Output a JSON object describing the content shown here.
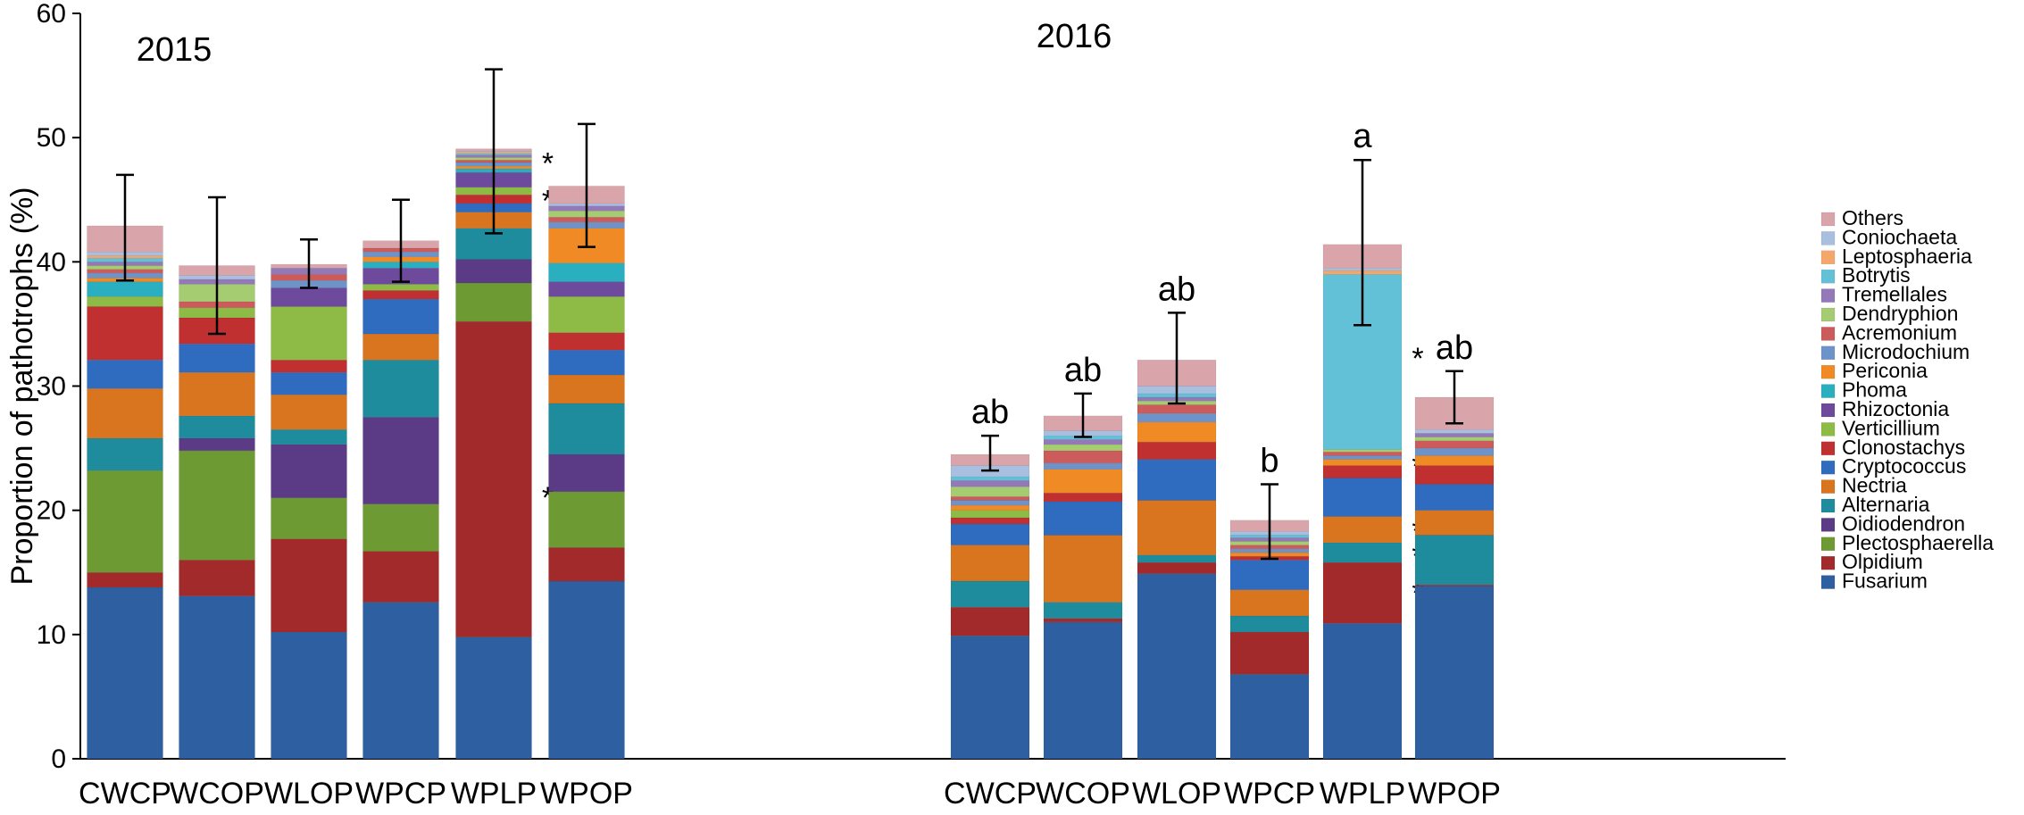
{
  "chart_data": {
    "type": "bar",
    "stacked": true,
    "ylabel": "Proportion of pathotrophs (%)",
    "ylim": [
      0,
      60
    ],
    "yticks": [
      0,
      10,
      20,
      30,
      40,
      50,
      60
    ],
    "categories": [
      "CWCP",
      "WCOP",
      "WLOP",
      "WPCP",
      "WPLP",
      "WPOP"
    ],
    "legend": {
      "position": "right",
      "order_top_to_bottom": [
        "Others",
        "Coniochaeta",
        "Leptosphaeria",
        "Botrytis",
        "Tremellales",
        "Dendryphion",
        "Acremonium",
        "Microdochium",
        "Periconia",
        "Phoma",
        "Rhizoctonia",
        "Verticillium",
        "Clonostachys",
        "Cryptococcus",
        "Nectria",
        "Alternaria",
        "Oidiodendron",
        "Plectosphaerella",
        "Olpidium",
        "Fusarium"
      ]
    },
    "series_colors": {
      "Fusarium": "#2E5FA1",
      "Olpidium": "#A32A2A",
      "Plectosphaerella": "#6D9A32",
      "Oidiodendron": "#5B3A86",
      "Alternaria": "#1F8C9E",
      "Nectria": "#D9741F",
      "Cryptococcus": "#2F6CC0",
      "Clonostachys": "#C03030",
      "Verticillium": "#8DBB45",
      "Rhizoctonia": "#6E4A9C",
      "Phoma": "#2AAFC0",
      "Periconia": "#F08A24",
      "Microdochium": "#6E93C8",
      "Acremonium": "#CC5B5B",
      "Dendryphion": "#A6CC72",
      "Tremellales": "#9379B8",
      "Botrytis": "#62C1D6",
      "Leptosphaeria": "#F5A66A",
      "Coniochaeta": "#A9BFE0",
      "Others": "#D9A5AA"
    },
    "panels": [
      {
        "year": "2015",
        "bars": [
          {
            "category": "CWCP",
            "segments": {
              "Fusarium": 13.8,
              "Olpidium": 1.2,
              "Plectosphaerella": 8.2,
              "Alternaria": 2.6,
              "Nectria": 4.0,
              "Cryptococcus": 2.3,
              "Clonostachys": 4.3,
              "Verticillium": 0.8,
              "Phoma": 1.2,
              "Periconia": 0.3,
              "Microdochium": 0.4,
              "Acremonium": 0.3,
              "Dendryphion": 0.3,
              "Tremellales": 0.3,
              "Botrytis": 0.3,
              "Leptosphaeria": 0.2,
              "Coniochaeta": 0.3,
              "Others": 2.1
            },
            "error": [
              38.5,
              47.0
            ],
            "stars": [],
            "letter": ""
          },
          {
            "category": "WCOP",
            "segments": {
              "Fusarium": 13.1,
              "Olpidium": 2.9,
              "Plectosphaerella": 8.8,
              "Oidiodendron": 1.0,
              "Alternaria": 1.8,
              "Nectria": 3.5,
              "Cryptococcus": 2.3,
              "Clonostachys": 2.1,
              "Verticillium": 0.8,
              "Acremonium": 0.5,
              "Dendryphion": 1.4,
              "Tremellales": 0.4,
              "Coniochaeta": 0.3,
              "Others": 0.8
            },
            "error": [
              34.2,
              45.2
            ],
            "stars": [],
            "letter": ""
          },
          {
            "category": "WLOP",
            "segments": {
              "Fusarium": 10.2,
              "Olpidium": 7.5,
              "Plectosphaerella": 3.3,
              "Oidiodendron": 4.3,
              "Alternaria": 1.2,
              "Nectria": 2.8,
              "Cryptococcus": 1.8,
              "Clonostachys": 1.0,
              "Verticillium": 4.3,
              "Rhizoctonia": 1.5,
              "Microdochium": 0.6,
              "Acremonium": 0.5,
              "Tremellales": 0.5,
              "Others": 0.3
            },
            "error": [
              37.9,
              41.8
            ],
            "stars": [],
            "letter": ""
          },
          {
            "category": "WPCP",
            "segments": {
              "Fusarium": 12.6,
              "Olpidium": 4.1,
              "Plectosphaerella": 3.8,
              "Oidiodendron": 7.0,
              "Alternaria": 4.6,
              "Nectria": 2.1,
              "Cryptococcus": 2.8,
              "Clonostachys": 0.7,
              "Verticillium": 0.5,
              "Rhizoctonia": 1.3,
              "Phoma": 0.5,
              "Periconia": 0.4,
              "Microdochium": 0.4,
              "Acremonium": 0.3,
              "Others": 0.6
            },
            "error": [
              38.4,
              45.0
            ],
            "stars": [],
            "letter": ""
          },
          {
            "category": "WPLP",
            "segments": {
              "Fusarium": 9.8,
              "Olpidium": 25.4,
              "Plectosphaerella": 3.1,
              "Oidiodendron": 1.9,
              "Alternaria": 2.5,
              "Nectria": 1.3,
              "Cryptococcus": 0.7,
              "Clonostachys": 0.7,
              "Verticillium": 0.6,
              "Rhizoctonia": 1.2,
              "Phoma": 0.3,
              "Periconia": 0.2,
              "Microdochium": 0.3,
              "Acremonium": 0.2,
              "Dendryphion": 0.2,
              "Tremellales": 0.2,
              "Botrytis": 0.1,
              "Leptosphaeria": 0.1,
              "Coniochaeta": 0.1,
              "Others": 0.2
            },
            "error": [
              42.3,
              55.5
            ],
            "stars": [
              21.2,
              45.1,
              48.1
            ],
            "letter": ""
          },
          {
            "category": "WPOP",
            "segments": {
              "Fusarium": 14.3,
              "Olpidium": 2.7,
              "Plectosphaerella": 4.5,
              "Oidiodendron": 3.0,
              "Alternaria": 4.1,
              "Nectria": 2.3,
              "Cryptococcus": 2.0,
              "Clonostachys": 1.4,
              "Verticillium": 2.9,
              "Rhizoctonia": 1.2,
              "Phoma": 1.5,
              "Periconia": 2.8,
              "Microdochium": 0.5,
              "Acremonium": 0.4,
              "Dendryphion": 0.5,
              "Tremellales": 0.4,
              "Coniochaeta": 0.2,
              "Others": 1.4
            },
            "error": [
              41.2,
              51.1
            ],
            "stars": [],
            "letter": ""
          }
        ]
      },
      {
        "year": "2016",
        "bars": [
          {
            "category": "CWCP",
            "segments": {
              "Fusarium": 9.9,
              "Olpidium": 2.3,
              "Alternaria": 2.1,
              "Nectria": 2.9,
              "Cryptococcus": 1.7,
              "Clonostachys": 0.5,
              "Verticillium": 0.6,
              "Periconia": 0.4,
              "Microdochium": 0.4,
              "Acremonium": 0.3,
              "Dendryphion": 0.8,
              "Tremellales": 0.5,
              "Botrytis": 0.3,
              "Coniochaeta": 0.9,
              "Others": 0.9
            },
            "error": [
              23.2,
              26.0
            ],
            "stars": [],
            "letter": "ab"
          },
          {
            "category": "WCOP",
            "segments": {
              "Fusarium": 11.0,
              "Olpidium": 0.3,
              "Alternaria": 1.3,
              "Nectria": 5.4,
              "Cryptococcus": 2.7,
              "Clonostachys": 0.7,
              "Periconia": 1.9,
              "Microdochium": 0.5,
              "Acremonium": 1.0,
              "Dendryphion": 0.5,
              "Tremellales": 0.4,
              "Botrytis": 0.3,
              "Coniochaeta": 0.4,
              "Others": 1.2
            },
            "error": [
              25.9,
              29.4
            ],
            "stars": [],
            "letter": "ab"
          },
          {
            "category": "WLOP",
            "segments": {
              "Fusarium": 14.9,
              "Olpidium": 0.9,
              "Alternaria": 0.6,
              "Nectria": 4.4,
              "Cryptococcus": 3.3,
              "Clonostachys": 1.4,
              "Periconia": 1.6,
              "Microdochium": 0.7,
              "Acremonium": 0.7,
              "Dendryphion": 0.3,
              "Tremellales": 0.3,
              "Botrytis": 0.3,
              "Coniochaeta": 0.6,
              "Others": 2.1
            },
            "error": [
              28.6,
              35.9
            ],
            "stars": [],
            "letter": "ab"
          },
          {
            "category": "WPCP",
            "segments": {
              "Fusarium": 6.8,
              "Olpidium": 3.4,
              "Alternaria": 1.3,
              "Nectria": 2.1,
              "Cryptococcus": 2.4,
              "Clonostachys": 0.3,
              "Periconia": 0.3,
              "Microdochium": 0.3,
              "Acremonium": 0.3,
              "Dendryphion": 0.3,
              "Tremellales": 0.3,
              "Botrytis": 0.2,
              "Coniochaeta": 0.3,
              "Others": 0.9
            },
            "error": [
              16.1,
              22.1
            ],
            "stars": [],
            "letter": "b"
          },
          {
            "category": "WPLP",
            "segments": {
              "Fusarium": 10.9,
              "Olpidium": 4.9,
              "Alternaria": 1.6,
              "Nectria": 2.1,
              "Cryptococcus": 3.1,
              "Clonostachys": 1.0,
              "Periconia": 0.5,
              "Microdochium": 0.3,
              "Acremonium": 0.3,
              "Dendryphion": 0.2,
              "Botrytis": 14.1,
              "Leptosphaeria": 0.3,
              "Coniochaeta": 0.2,
              "Others": 1.9
            },
            "error": [
              34.9,
              48.2
            ],
            "stars": [
              13.5,
              16.5,
              18.5,
              23.7,
              32.4
            ],
            "letter": "a"
          },
          {
            "category": "WPOP",
            "segments": {
              "Fusarium": 13.9,
              "Olpidium": 0.1,
              "Alternaria": 4.0,
              "Nectria": 2.0,
              "Cryptococcus": 2.1,
              "Clonostachys": 1.5,
              "Periconia": 0.8,
              "Microdochium": 0.6,
              "Acremonium": 0.6,
              "Dendryphion": 0.3,
              "Tremellales": 0.3,
              "Coniochaeta": 0.3,
              "Others": 2.6
            },
            "error": [
              27.0,
              31.2
            ],
            "stars": [],
            "letter": "ab"
          }
        ]
      }
    ]
  }
}
